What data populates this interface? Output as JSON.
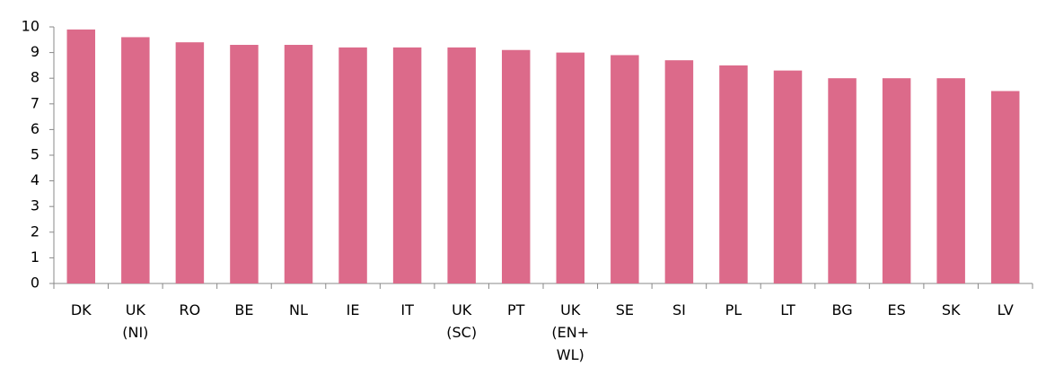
{
  "chart_data": {
    "type": "bar",
    "categories": [
      "DK",
      "UK (NI)",
      "RO",
      "BE",
      "NL",
      "IE",
      "IT",
      "UK (SC)",
      "PT",
      "UK (EN+ WL)",
      "SE",
      "SI",
      "PL",
      "LT",
      "BG",
      "ES",
      "SK",
      "LV"
    ],
    "values": [
      9.9,
      9.6,
      9.4,
      9.3,
      9.3,
      9.2,
      9.2,
      9.2,
      9.1,
      9.0,
      8.9,
      8.7,
      8.5,
      8.3,
      8.0,
      8.0,
      8.0,
      7.5
    ],
    "color": "#dc6a8a",
    "ylim": [
      0,
      10
    ],
    "yticks": [
      0,
      1,
      2,
      3,
      4,
      5,
      6,
      7,
      8,
      9,
      10
    ],
    "grid": false
  }
}
